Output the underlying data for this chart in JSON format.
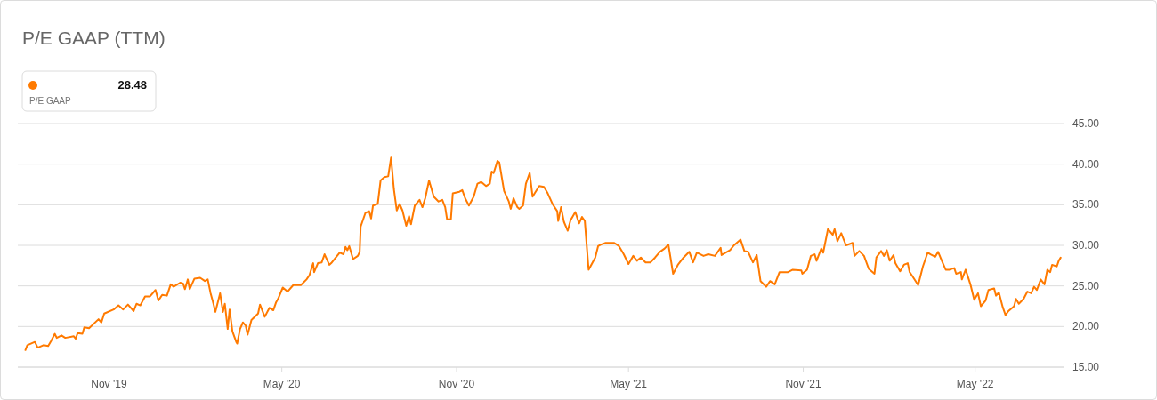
{
  "chart_data": {
    "type": "line",
    "title": "P/E GAAP (TTM)",
    "annotations": [
      "28.48",
      "P/E GAAP"
    ],
    "xlim": [
      "2019-07-28",
      "2022-08-03"
    ],
    "xticks": [
      {
        "value": "2019-11-01",
        "label": "Nov '19"
      },
      {
        "value": "2020-05-01",
        "label": "May '20"
      },
      {
        "value": "2020-11-01",
        "label": "Nov '20"
      },
      {
        "value": "2021-05-01",
        "label": "May '21"
      },
      {
        "value": "2021-11-01",
        "label": "Nov '21"
      },
      {
        "value": "2022-05-01",
        "label": "May '22"
      }
    ],
    "ylim": [
      15,
      45
    ],
    "yticks": [
      {
        "value": 15,
        "label": "15.00"
      },
      {
        "value": 20,
        "label": "20.00"
      },
      {
        "value": 25,
        "label": "25.00"
      },
      {
        "value": 30,
        "label": "30.00"
      },
      {
        "value": 35,
        "label": "35.00"
      },
      {
        "value": 40,
        "label": "40.00"
      },
      {
        "value": 45,
        "label": "45.00"
      }
    ],
    "grid": "y",
    "marker": "none",
    "line_style": "solid",
    "x": [
      "2019-08-05",
      "2019-08-07",
      "2019-08-15",
      "2019-08-18",
      "2019-08-24",
      "2019-08-29",
      "2019-09-01",
      "2019-09-05",
      "2019-09-07",
      "2019-09-12",
      "2019-09-16",
      "2019-09-25",
      "2019-09-27",
      "2019-09-29",
      "2019-10-04",
      "2019-10-06",
      "2019-10-11",
      "2019-10-21",
      "2019-10-24",
      "2019-10-27",
      "2019-11-06",
      "2019-11-11",
      "2019-11-16",
      "2019-11-21",
      "2019-11-27",
      "2019-11-30",
      "2019-12-04",
      "2019-12-09",
      "2019-12-14",
      "2019-12-20",
      "2019-12-23",
      "2019-12-27",
      "2020-01-01",
      "2020-01-05",
      "2020-01-08",
      "2020-01-15",
      "2020-01-18",
      "2020-01-20",
      "2020-01-23",
      "2020-01-25",
      "2020-01-30",
      "2020-02-05",
      "2020-02-10",
      "2020-02-13",
      "2020-02-16",
      "2020-02-19",
      "2020-02-21",
      "2020-02-26",
      "2020-02-29",
      "2020-03-02",
      "2020-03-05",
      "2020-03-07",
      "2020-03-10",
      "2020-03-14",
      "2020-03-15",
      "2020-03-18",
      "2020-03-21",
      "2020-03-24",
      "2020-03-26",
      "2020-03-30",
      "2020-04-06",
      "2020-04-08",
      "2020-04-13",
      "2020-04-18",
      "2020-04-22",
      "2020-04-25",
      "2020-04-27",
      "2020-05-02",
      "2020-05-07",
      "2020-05-13",
      "2020-05-21",
      "2020-05-27",
      "2020-05-30",
      "2020-06-03",
      "2020-06-04",
      "2020-06-08",
      "2020-06-12",
      "2020-06-15",
      "2020-06-20",
      "2020-06-22",
      "2020-07-01",
      "2020-07-05",
      "2020-07-07",
      "2020-07-09",
      "2020-07-11",
      "2020-07-15",
      "2020-07-20",
      "2020-07-22",
      "2020-07-23",
      "2020-07-28",
      "2020-08-01",
      "2020-08-03",
      "2020-08-05",
      "2020-08-10",
      "2020-08-13",
      "2020-08-17",
      "2020-08-21",
      "2020-08-24",
      "2020-08-27",
      "2020-08-30",
      "2020-09-02",
      "2020-09-05",
      "2020-09-09",
      "2020-09-12",
      "2020-09-14",
      "2020-09-18",
      "2020-09-23",
      "2020-09-26",
      "2020-09-29",
      "2020-10-03",
      "2020-10-08",
      "2020-10-13",
      "2020-10-17",
      "2020-10-20",
      "2020-10-22",
      "2020-10-26",
      "2020-10-28",
      "2020-11-04",
      "2020-11-07",
      "2020-11-10",
      "2020-11-14",
      "2020-11-19",
      "2020-11-23",
      "2020-11-27",
      "2020-12-02",
      "2020-12-06",
      "2020-12-08",
      "2020-12-10",
      "2020-12-14",
      "2020-12-16",
      "2020-12-21",
      "2020-12-26",
      "2020-12-28",
      "2020-12-31",
      "2021-01-04",
      "2021-01-06",
      "2021-01-10",
      "2021-01-13",
      "2021-01-17",
      "2021-01-20",
      "2021-01-27",
      "2021-02-01",
      "2021-02-05",
      "2021-02-10",
      "2021-02-15",
      "2021-02-16",
      "2021-02-19",
      "2021-02-22",
      "2021-02-26",
      "2021-03-01",
      "2021-03-06",
      "2021-03-10",
      "2021-03-13",
      "2021-03-16",
      "2021-03-20",
      "2021-03-27",
      "2021-03-30",
      "2021-04-02",
      "2021-04-07",
      "2021-04-16",
      "2021-04-21",
      "2021-04-26",
      "2021-05-01",
      "2021-05-06",
      "2021-05-10",
      "2021-05-14",
      "2021-05-19",
      "2021-05-24",
      "2021-05-29",
      "2021-06-03",
      "2021-06-08",
      "2021-06-12",
      "2021-06-17",
      "2021-06-22",
      "2021-06-28",
      "2021-07-04",
      "2021-07-08",
      "2021-07-12",
      "2021-07-19",
      "2021-07-24",
      "2021-07-31",
      "2021-08-06",
      "2021-08-07",
      "2021-08-16",
      "2021-08-20",
      "2021-08-27",
      "2021-08-31",
      "2021-09-04",
      "2021-09-09",
      "2021-09-13",
      "2021-09-17",
      "2021-09-23",
      "2021-09-27",
      "2021-10-02",
      "2021-10-07",
      "2021-10-16",
      "2021-10-21",
      "2021-10-30",
      "2021-10-31",
      "2021-11-05",
      "2021-11-09",
      "2021-11-13",
      "2021-11-15",
      "2021-11-20",
      "2021-11-22",
      "2021-11-27",
      "2021-12-02",
      "2021-12-04",
      "2021-12-07",
      "2021-12-11",
      "2021-12-16",
      "2021-12-23",
      "2021-12-25",
      "2021-12-30",
      "2022-01-04",
      "2022-01-09",
      "2022-01-15",
      "2022-01-17",
      "2022-01-22",
      "2022-01-25",
      "2022-01-28",
      "2022-01-31",
      "2022-02-04",
      "2022-02-06",
      "2022-02-11",
      "2022-02-15",
      "2022-02-19",
      "2022-02-21",
      "2022-02-24",
      "2022-03-02",
      "2022-03-07",
      "2022-03-12",
      "2022-03-15",
      "2022-03-20",
      "2022-03-23",
      "2022-03-28",
      "2022-03-31",
      "2022-04-04",
      "2022-04-09",
      "2022-04-11",
      "2022-04-16",
      "2022-04-17",
      "2022-04-21",
      "2022-04-26",
      "2022-04-30",
      "2022-05-04",
      "2022-05-07",
      "2022-05-12",
      "2022-05-15",
      "2022-05-21",
      "2022-05-23",
      "2022-05-26",
      "2022-05-30",
      "2022-06-02",
      "2022-06-05",
      "2022-06-11",
      "2022-06-13",
      "2022-06-16",
      "2022-06-21",
      "2022-06-25",
      "2022-06-29",
      "2022-07-02",
      "2022-07-05",
      "2022-07-09",
      "2022-07-13",
      "2022-07-16",
      "2022-07-19",
      "2022-07-21",
      "2022-07-26",
      "2022-07-28",
      "2022-07-30"
    ],
    "series": [
      {
        "color": "#ff7a00",
        "values": [
          17.1,
          17.7,
          18.1,
          17.4,
          17.7,
          17.6,
          18.2,
          19.1,
          18.6,
          18.9,
          18.6,
          18.8,
          18.5,
          19.2,
          19.1,
          19.9,
          19.8,
          20.9,
          20.5,
          21.6,
          22.1,
          22.6,
          22.1,
          22.7,
          21.9,
          22.8,
          22.6,
          23.7,
          23.7,
          24.5,
          23.2,
          23.9,
          23.8,
          25.2,
          24.9,
          25.4,
          25.3,
          24.6,
          25.8,
          24.6,
          25.9,
          26.0,
          25.6,
          25.8,
          24.1,
          22.8,
          21.8,
          24.1,
          21.8,
          22.8,
          19.7,
          22.1,
          19.4,
          18.1,
          17.9,
          19.7,
          20.5,
          20.1,
          19.0,
          20.8,
          21.6,
          22.7,
          21.2,
          22.3,
          22.0,
          23.0,
          23.4,
          24.8,
          24.3,
          25.1,
          25.1,
          25.8,
          26.3,
          27.8,
          26.7,
          27.8,
          27.9,
          28.9,
          27.6,
          27.8,
          29.1,
          28.9,
          29.8,
          29.4,
          29.9,
          28.3,
          28.7,
          29.2,
          32.3,
          34.0,
          34.2,
          33.3,
          34.9,
          35.1,
          38.0,
          38.4,
          38.5,
          40.8,
          36.9,
          34.3,
          35.1,
          34.3,
          32.4,
          33.6,
          32.6,
          34.9,
          35.6,
          34.7,
          35.8,
          38.0,
          36.0,
          35.4,
          35.6,
          34.7,
          33.2,
          33.2,
          36.4,
          36.6,
          36.8,
          35.8,
          34.9,
          36.0,
          37.6,
          37.8,
          37.3,
          37.6,
          39.1,
          38.9,
          40.4,
          40.2,
          36.7,
          35.4,
          34.5,
          35.8,
          34.7,
          34.5,
          34.9,
          37.6,
          38.9,
          36.0,
          37.3,
          37.2,
          36.4,
          35.1,
          34.2,
          33.0,
          34.7,
          32.9,
          31.8,
          33.1,
          34.1,
          32.7,
          33.5,
          33.0,
          27.0,
          28.5,
          29.9,
          30.1,
          30.3,
          30.3,
          29.9,
          28.9,
          27.7,
          28.7,
          28.1,
          28.5,
          27.9,
          27.9,
          28.5,
          29.2,
          29.6,
          30.1,
          26.5,
          27.6,
          28.5,
          29.2,
          27.9,
          29.1,
          28.7,
          28.9,
          28.7,
          29.7,
          28.8,
          29.4,
          30.0,
          30.7,
          29.3,
          29.2,
          27.9,
          28.8,
          25.6,
          24.9,
          25.6,
          25.2,
          26.7,
          26.7,
          27.0,
          26.9,
          26.5,
          27.0,
          28.7,
          28.9,
          28.1,
          29.6,
          29.1,
          32.0,
          31.3,
          32.0,
          30.5,
          31.5,
          30.0,
          30.3,
          28.7,
          29.3,
          28.7,
          27.1,
          26.5,
          28.5,
          29.3,
          28.7,
          29.4,
          28.1,
          28.8,
          27.8,
          26.8,
          27.6,
          27.8,
          26.7,
          26.2,
          25.1,
          27.4,
          29.1,
          28.9,
          28.6,
          29.2,
          27.8,
          27.0,
          27.0,
          27.2,
          26.5,
          26.7,
          25.8,
          27.0,
          25.2,
          23.3,
          24.1,
          22.5,
          23.2,
          24.5,
          24.7,
          23.8,
          24.2,
          22.4,
          21.4,
          21.9,
          22.5,
          23.4,
          22.8,
          23.4,
          24.3,
          24.1,
          24.9,
          24.5,
          25.8,
          25.2,
          27.0,
          26.7,
          27.6,
          27.4,
          28.1,
          28.48
        ]
      }
    ]
  }
}
